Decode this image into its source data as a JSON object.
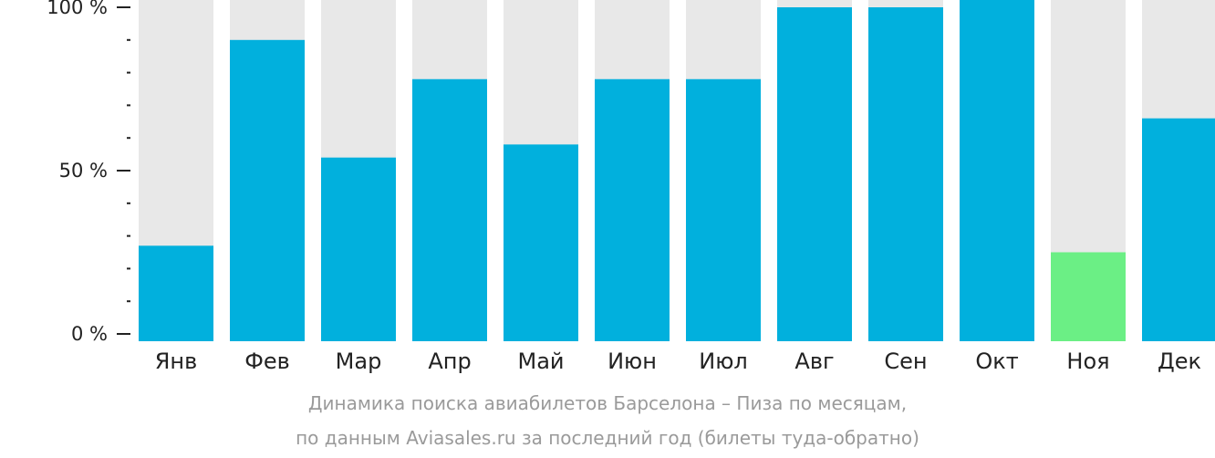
{
  "chart_data": {
    "type": "bar",
    "categories": [
      "Янв",
      "Фев",
      "Мар",
      "Апр",
      "Май",
      "Июн",
      "Июл",
      "Авг",
      "Сен",
      "Окт",
      "Ноя",
      "Дек"
    ],
    "values": [
      27,
      90,
      54,
      78,
      58,
      78,
      78,
      100,
      100,
      104,
      25,
      66
    ],
    "ylim": [
      0,
      100
    ],
    "yticks": [
      {
        "value": 0,
        "label": "0 %"
      },
      {
        "value": 50,
        "label": "50 %"
      },
      {
        "value": 100,
        "label": "100 %"
      }
    ],
    "minor_ticks": [
      10,
      20,
      30,
      40,
      60,
      70,
      80,
      90
    ],
    "highlight_index": 10,
    "colors": {
      "bar": "#01b0dd",
      "highlight": "#6bef85",
      "background_bar": "#e8e8e8",
      "axis": "#222222"
    }
  },
  "caption": {
    "line1": "Динамика поиска авиабилетов Барселона – Пиза по месяцам,",
    "line2": "по данным Aviasales.ru за последний год (билеты туда-обратно)"
  }
}
